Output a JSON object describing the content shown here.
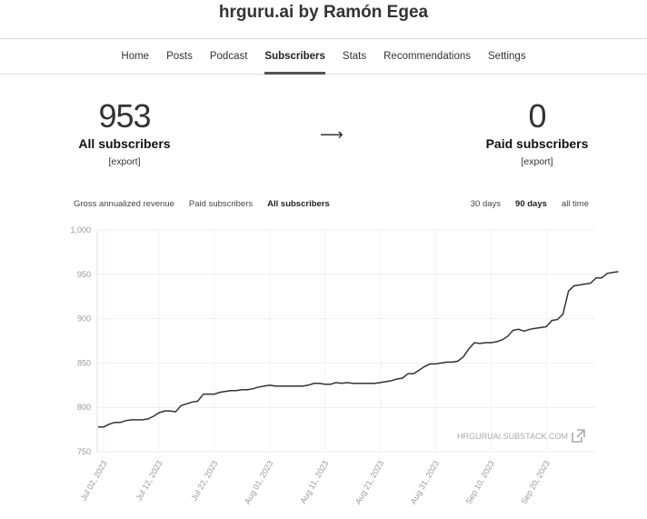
{
  "site": {
    "title": "hrguru.ai by Ramón Egea"
  },
  "nav": {
    "items": [
      {
        "label": "Home"
      },
      {
        "label": "Posts"
      },
      {
        "label": "Podcast"
      },
      {
        "label": "Subscribers"
      },
      {
        "label": "Stats"
      },
      {
        "label": "Recommendations"
      },
      {
        "label": "Settings"
      }
    ],
    "active": "Subscribers"
  },
  "stats": {
    "all": {
      "value": "953",
      "label": "All subscribers",
      "export": "[export]"
    },
    "arrow": "⟶",
    "paid": {
      "value": "0",
      "label": "Paid subscribers",
      "export": "[export]"
    }
  },
  "metric_tabs": {
    "items": [
      "Gross annualized revenue",
      "Paid subscribers",
      "All subscribers"
    ],
    "active": "All subscribers"
  },
  "range_tabs": {
    "items": [
      "30 days",
      "90 days",
      "all time"
    ],
    "active": "90 days"
  },
  "chart_data": {
    "type": "line",
    "title": "",
    "xlabel": "",
    "ylabel": "",
    "ylim": [
      750,
      1000
    ],
    "y_ticks": [
      "1,000",
      "950",
      "900",
      "850",
      "800",
      "750"
    ],
    "x_ticks": [
      "Jul 02, 2023",
      "Jul 12, 2023",
      "Jul 22, 2023",
      "Aug 01, 2023",
      "Aug 11, 2023",
      "Aug 21, 2023",
      "Aug 31, 2023",
      "Sep 10, 2023",
      "Sep 20, 2023"
    ],
    "x_range_days": 90,
    "grid": true,
    "watermark": "HRGURUAI.SUBSTACK.COM",
    "series": [
      {
        "color": "#333333",
        "points": [
          [
            0,
            778
          ],
          [
            1,
            778
          ],
          [
            2,
            781
          ],
          [
            3,
            783
          ],
          [
            4,
            783
          ],
          [
            5,
            785
          ],
          [
            6,
            786
          ],
          [
            7,
            786
          ],
          [
            8,
            786
          ],
          [
            9,
            787
          ],
          [
            10,
            790
          ],
          [
            11,
            794
          ],
          [
            12,
            796
          ],
          [
            13,
            796
          ],
          [
            14,
            795
          ],
          [
            15,
            802
          ],
          [
            16,
            804
          ],
          [
            17,
            806
          ],
          [
            18,
            807
          ],
          [
            19,
            815
          ],
          [
            20,
            815
          ],
          [
            21,
            815
          ],
          [
            22,
            817
          ],
          [
            23,
            818
          ],
          [
            24,
            819
          ],
          [
            25,
            819
          ],
          [
            26,
            820
          ],
          [
            27,
            820
          ],
          [
            28,
            821
          ],
          [
            29,
            823
          ],
          [
            30,
            824
          ],
          [
            31,
            825
          ],
          [
            32,
            824
          ],
          [
            33,
            824
          ],
          [
            34,
            824
          ],
          [
            35,
            824
          ],
          [
            36,
            824
          ],
          [
            37,
            824
          ],
          [
            38,
            825
          ],
          [
            39,
            827
          ],
          [
            40,
            827
          ],
          [
            41,
            826
          ],
          [
            42,
            826
          ],
          [
            43,
            828
          ],
          [
            44,
            827
          ],
          [
            45,
            828
          ],
          [
            46,
            827
          ],
          [
            47,
            827
          ],
          [
            48,
            827
          ],
          [
            49,
            827
          ],
          [
            50,
            827
          ],
          [
            51,
            828
          ],
          [
            52,
            829
          ],
          [
            53,
            830
          ],
          [
            54,
            832
          ],
          [
            55,
            833
          ],
          [
            56,
            838
          ],
          [
            57,
            838
          ],
          [
            58,
            842
          ],
          [
            59,
            846
          ],
          [
            60,
            849
          ],
          [
            61,
            849
          ],
          [
            62,
            850
          ],
          [
            63,
            851
          ],
          [
            64,
            851
          ],
          [
            65,
            852
          ],
          [
            66,
            857
          ],
          [
            67,
            866
          ],
          [
            68,
            873
          ],
          [
            69,
            872
          ],
          [
            70,
            873
          ],
          [
            71,
            873
          ],
          [
            72,
            874
          ],
          [
            73,
            876
          ],
          [
            74,
            880
          ],
          [
            75,
            887
          ],
          [
            76,
            888
          ],
          [
            77,
            886
          ],
          [
            78,
            888
          ],
          [
            79,
            889
          ],
          [
            80,
            890
          ],
          [
            81,
            891
          ],
          [
            82,
            898
          ],
          [
            83,
            899
          ],
          [
            84,
            905
          ],
          [
            85,
            931
          ],
          [
            86,
            937
          ],
          [
            87,
            938
          ],
          [
            88,
            939
          ],
          [
            89,
            940
          ],
          [
            90,
            946
          ],
          [
            91,
            946
          ],
          [
            92,
            951
          ],
          [
            93,
            952
          ],
          [
            94,
            953
          ]
        ]
      }
    ]
  }
}
